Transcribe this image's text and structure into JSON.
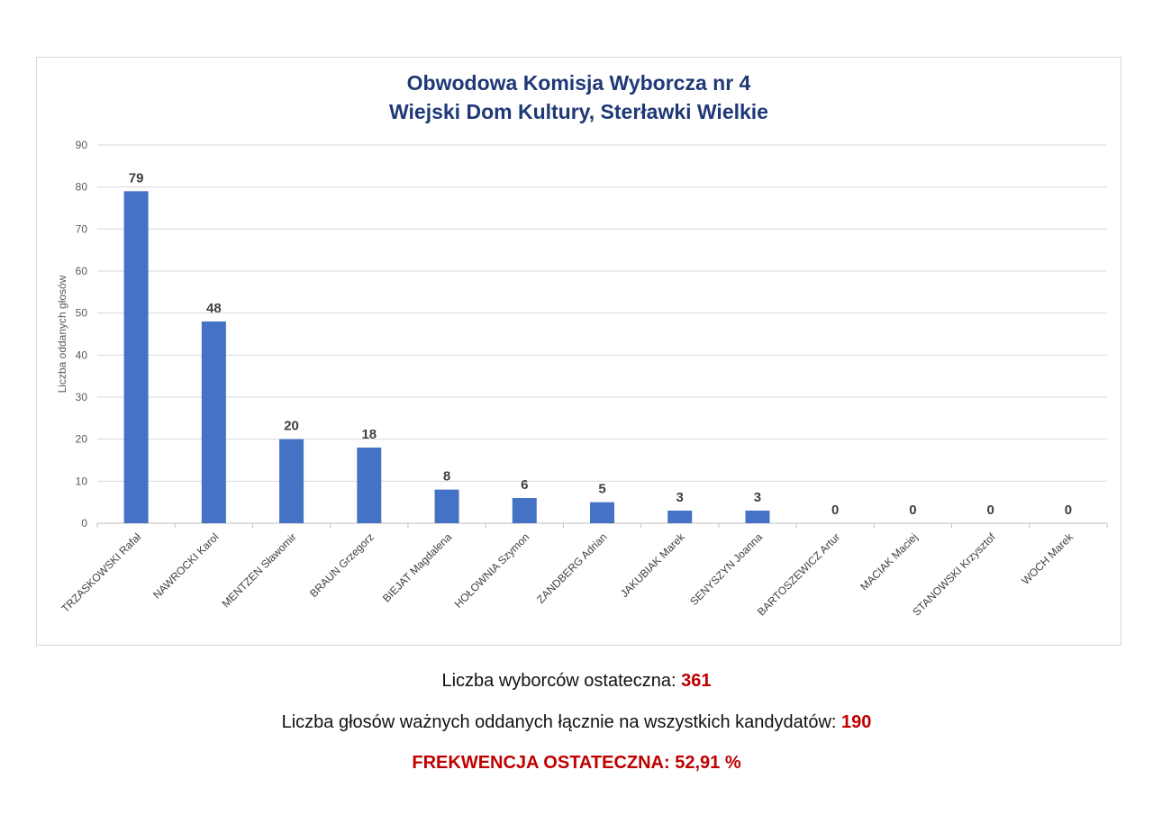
{
  "chart_data": {
    "type": "bar",
    "title_line1": "Obwodowa Komisja Wyborcza nr 4",
    "title_line2": "Wiejski Dom Kultury, Sterławki Wielkie",
    "xlabel": "",
    "ylabel": "Liczba oddanych głosów",
    "ylim": [
      0,
      90
    ],
    "yticks": [
      0,
      10,
      20,
      30,
      40,
      50,
      60,
      70,
      80,
      90
    ],
    "grid": true,
    "bar_color": "#4472c4",
    "categories": [
      "TRZASKOWSKI Rafał",
      "NAWROCKI Karol",
      "MENTZEN Sławomir",
      "BRAUN Grzegorz",
      "BIEJAT Magdalena",
      "HOŁOWNIA Szymon",
      "ZANDBERG Adrian",
      "JAKUBIAK Marek",
      "SENYSZYN Joanna",
      "BARTOSZEWICZ Artur",
      "MACIAK Maciej",
      "STANOWSKI Krzysztof",
      "WOCH Marek"
    ],
    "values": [
      79,
      48,
      20,
      18,
      8,
      6,
      5,
      3,
      3,
      0,
      0,
      0,
      0
    ]
  },
  "summary": {
    "voters_label": "Liczba wyborców ostateczna: ",
    "voters_value": "361",
    "valid_votes_label": "Liczba głosów ważnych oddanych łącznie na wszystkich kandydatów: ",
    "valid_votes_value": "190",
    "turnout_text": "FREKWENCJA OSTATECZNA: 52,91 %"
  },
  "colors": {
    "title": "#1f3877",
    "highlight": "#c00000",
    "bar": "#4472c4"
  }
}
